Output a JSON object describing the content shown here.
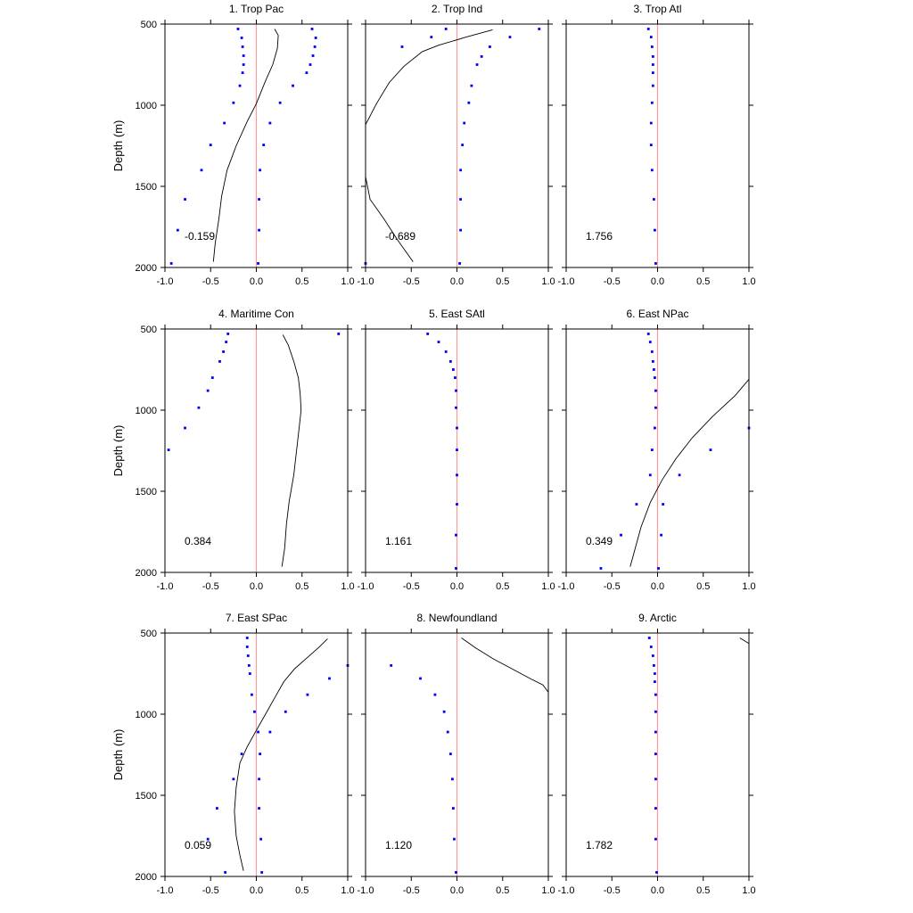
{
  "chart_data": {
    "type": "scatter",
    "ylabel": "Depth (m)",
    "xlim": [
      -1,
      1
    ],
    "ylim": [
      500,
      2000
    ],
    "y_inverted": true,
    "xticks": [
      "-1.0",
      "-0.5",
      "0.0",
      "0.5",
      "1.0"
    ],
    "yticks": [
      "500",
      "1000",
      "1500",
      "2000"
    ],
    "reference_line": {
      "x": 0,
      "color": "#ff9a9a"
    },
    "colors": {
      "points": "#0000ff",
      "profile": "#000000"
    },
    "panels": [
      {
        "title": "1. Trop Pac",
        "value": "-0.159",
        "series_a": [
          [
            -0.2,
            530
          ],
          [
            -0.16,
            585
          ],
          [
            -0.15,
            640
          ],
          [
            -0.14,
            695
          ],
          [
            -0.14,
            750
          ],
          [
            -0.15,
            800
          ],
          [
            -0.18,
            880
          ],
          [
            -0.25,
            985
          ],
          [
            -0.35,
            1110
          ],
          [
            -0.5,
            1245
          ],
          [
            -0.6,
            1400
          ],
          [
            -0.78,
            1580
          ],
          [
            -0.86,
            1770
          ],
          [
            -0.93,
            1975
          ]
        ],
        "series_b": [
          [
            0.61,
            530
          ],
          [
            0.65,
            585
          ],
          [
            0.64,
            640
          ],
          [
            0.62,
            695
          ],
          [
            0.59,
            750
          ],
          [
            0.55,
            800
          ],
          [
            0.4,
            880
          ],
          [
            0.26,
            985
          ],
          [
            0.15,
            1110
          ],
          [
            0.08,
            1245
          ],
          [
            0.04,
            1400
          ],
          [
            0.03,
            1580
          ],
          [
            0.03,
            1770
          ],
          [
            0.02,
            1975
          ]
        ],
        "profile": [
          [
            0.2,
            530
          ],
          [
            0.24,
            570
          ],
          [
            0.23,
            650
          ],
          [
            0.18,
            750
          ],
          [
            0.1,
            850
          ],
          [
            0.0,
            990
          ],
          [
            -0.1,
            1100
          ],
          [
            -0.22,
            1250
          ],
          [
            -0.32,
            1400
          ],
          [
            -0.38,
            1560
          ],
          [
            -0.41,
            1700
          ],
          [
            -0.45,
            1850
          ],
          [
            -0.47,
            1965
          ]
        ]
      },
      {
        "title": "2. Trop Ind",
        "value": "-0.689",
        "series_a": [
          [
            -0.12,
            530
          ],
          [
            -0.28,
            580
          ],
          [
            -0.6,
            640
          ]
        ],
        "series_b": [
          [
            0.9,
            530
          ],
          [
            0.58,
            580
          ],
          [
            0.36,
            640
          ],
          [
            0.27,
            700
          ],
          [
            0.22,
            750
          ],
          [
            0.16,
            880
          ],
          [
            0.13,
            985
          ],
          [
            0.08,
            1110
          ],
          [
            0.06,
            1245
          ],
          [
            0.04,
            1400
          ],
          [
            0.04,
            1580
          ],
          [
            0.04,
            1770
          ],
          [
            0.03,
            1975
          ],
          [
            -1.0,
            1975
          ]
        ],
        "profile": [
          [
            0.39,
            535
          ],
          [
            0.1,
            580
          ],
          [
            -0.2,
            630
          ],
          [
            -0.38,
            670
          ],
          [
            -0.58,
            760
          ],
          [
            -0.74,
            860
          ],
          [
            -0.88,
            990
          ],
          [
            -1.0,
            1120
          ]
        ],
        "profile2": [
          [
            -1.0,
            1440
          ],
          [
            -0.95,
            1580
          ],
          [
            -0.8,
            1700
          ],
          [
            -0.65,
            1830
          ],
          [
            -0.48,
            1965
          ]
        ]
      },
      {
        "title": "3. Trop Atl",
        "value": "1.756",
        "series_a": [
          [
            -0.1,
            530
          ],
          [
            -0.07,
            580
          ],
          [
            -0.06,
            640
          ],
          [
            -0.05,
            700
          ],
          [
            -0.05,
            750
          ],
          [
            -0.05,
            800
          ],
          [
            -0.05,
            880
          ],
          [
            -0.06,
            985
          ],
          [
            -0.07,
            1110
          ],
          [
            -0.07,
            1245
          ],
          [
            -0.06,
            1400
          ],
          [
            -0.04,
            1580
          ],
          [
            -0.03,
            1770
          ],
          [
            -0.02,
            1975
          ]
        ],
        "series_b": [],
        "profile": []
      },
      {
        "title": "4. Maritime Con",
        "value": "0.384",
        "series_a": [
          [
            -0.31,
            530
          ],
          [
            -0.33,
            580
          ],
          [
            -0.36,
            640
          ],
          [
            -0.4,
            700
          ],
          [
            -0.48,
            800
          ],
          [
            -0.53,
            880
          ],
          [
            -0.63,
            985
          ],
          [
            -0.78,
            1110
          ],
          [
            -0.96,
            1245
          ]
        ],
        "series_b": [
          [
            0.9,
            530
          ]
        ],
        "profile": [
          [
            0.29,
            535
          ],
          [
            0.35,
            600
          ],
          [
            0.41,
            700
          ],
          [
            0.46,
            800
          ],
          [
            0.48,
            900
          ],
          [
            0.49,
            1000
          ],
          [
            0.47,
            1100
          ],
          [
            0.44,
            1250
          ],
          [
            0.41,
            1400
          ],
          [
            0.36,
            1560
          ],
          [
            0.33,
            1700
          ],
          [
            0.31,
            1850
          ],
          [
            0.28,
            1965
          ]
        ]
      },
      {
        "title": "5. East SAtl",
        "value": "1.161",
        "series_a": [
          [
            -0.32,
            530
          ],
          [
            -0.2,
            580
          ],
          [
            -0.12,
            640
          ],
          [
            -0.07,
            700
          ],
          [
            -0.04,
            750
          ],
          [
            -0.02,
            800
          ],
          [
            -0.01,
            880
          ],
          [
            -0.01,
            985
          ],
          [
            0.0,
            1110
          ],
          [
            0.0,
            1245
          ],
          [
            0.0,
            1400
          ],
          [
            0.0,
            1580
          ],
          [
            -0.01,
            1770
          ],
          [
            -0.01,
            1975
          ]
        ],
        "series_b": [],
        "profile": []
      },
      {
        "title": "6. East NPac",
        "value": "0.349",
        "series_a": [
          [
            -0.1,
            530
          ],
          [
            -0.08,
            580
          ],
          [
            -0.06,
            640
          ],
          [
            -0.05,
            700
          ],
          [
            -0.04,
            750
          ],
          [
            -0.03,
            800
          ],
          [
            -0.02,
            880
          ],
          [
            -0.02,
            985
          ],
          [
            -0.03,
            1110
          ],
          [
            -0.06,
            1245
          ],
          [
            -0.08,
            1400
          ],
          [
            -0.23,
            1580
          ],
          [
            -0.4,
            1770
          ],
          [
            -0.62,
            1975
          ]
        ],
        "series_b": [
          [
            1.0,
            1110
          ],
          [
            0.58,
            1245
          ],
          [
            0.24,
            1400
          ],
          [
            0.06,
            1580
          ],
          [
            0.04,
            1770
          ],
          [
            0.01,
            1975
          ]
        ],
        "profile": [
          [
            1.0,
            810
          ],
          [
            0.85,
            910
          ],
          [
            0.6,
            1040
          ],
          [
            0.38,
            1170
          ],
          [
            0.2,
            1300
          ],
          [
            0.05,
            1430
          ],
          [
            -0.08,
            1570
          ],
          [
            -0.18,
            1720
          ],
          [
            -0.3,
            1965
          ]
        ]
      },
      {
        "title": "7. East SPac",
        "value": "0.059",
        "series_a": [
          [
            -0.1,
            530
          ],
          [
            -0.1,
            585
          ],
          [
            -0.09,
            640
          ],
          [
            -0.08,
            700
          ],
          [
            -0.07,
            750
          ],
          [
            -0.05,
            880
          ],
          [
            -0.02,
            985
          ],
          [
            0.02,
            1110
          ],
          [
            0.04,
            1245
          ],
          [
            0.03,
            1400
          ],
          [
            0.03,
            1580
          ],
          [
            0.05,
            1770
          ],
          [
            0.06,
            1975
          ]
        ],
        "series_b": [
          [
            1.0,
            700
          ],
          [
            0.8,
            780
          ],
          [
            0.56,
            880
          ],
          [
            0.32,
            985
          ],
          [
            0.15,
            1110
          ],
          [
            -0.16,
            1245
          ],
          [
            -0.25,
            1400
          ],
          [
            -0.43,
            1580
          ],
          [
            -0.53,
            1770
          ],
          [
            -0.34,
            1975
          ]
        ],
        "profile": [
          [
            0.78,
            535
          ],
          [
            0.68,
            590
          ],
          [
            0.56,
            650
          ],
          [
            0.42,
            720
          ],
          [
            0.3,
            800
          ],
          [
            0.2,
            900
          ],
          [
            0.1,
            1000
          ],
          [
            0.0,
            1100
          ],
          [
            -0.1,
            1200
          ],
          [
            -0.18,
            1300
          ],
          [
            -0.22,
            1450
          ],
          [
            -0.24,
            1600
          ],
          [
            -0.22,
            1750
          ],
          [
            -0.18,
            1870
          ],
          [
            -0.14,
            1965
          ]
        ]
      },
      {
        "title": "8. Newfoundland",
        "value": "1.120",
        "series_a": [
          [
            -0.72,
            700
          ],
          [
            -0.4,
            780
          ],
          [
            -0.24,
            880
          ],
          [
            -0.14,
            985
          ],
          [
            -0.1,
            1110
          ],
          [
            -0.07,
            1245
          ],
          [
            -0.05,
            1400
          ],
          [
            -0.04,
            1580
          ],
          [
            -0.03,
            1770
          ],
          [
            -0.01,
            1975
          ]
        ],
        "series_b": [],
        "profile": [
          [
            0.05,
            530
          ],
          [
            0.2,
            590
          ],
          [
            0.4,
            660
          ],
          [
            0.6,
            720
          ],
          [
            0.8,
            780
          ],
          [
            0.94,
            820
          ],
          [
            1.0,
            865
          ]
        ]
      },
      {
        "title": "9. Arctic",
        "value": "1.782",
        "series_a": [
          [
            -0.09,
            530
          ],
          [
            -0.07,
            585
          ],
          [
            -0.05,
            640
          ],
          [
            -0.04,
            700
          ],
          [
            -0.03,
            750
          ],
          [
            -0.03,
            800
          ],
          [
            -0.02,
            880
          ],
          [
            -0.02,
            985
          ],
          [
            -0.02,
            1110
          ],
          [
            -0.02,
            1245
          ],
          [
            -0.02,
            1400
          ],
          [
            -0.02,
            1580
          ],
          [
            -0.02,
            1770
          ],
          [
            -0.01,
            1975
          ]
        ],
        "series_b": [],
        "profile": [
          [
            0.9,
            530
          ],
          [
            1.0,
            565
          ]
        ]
      }
    ]
  }
}
